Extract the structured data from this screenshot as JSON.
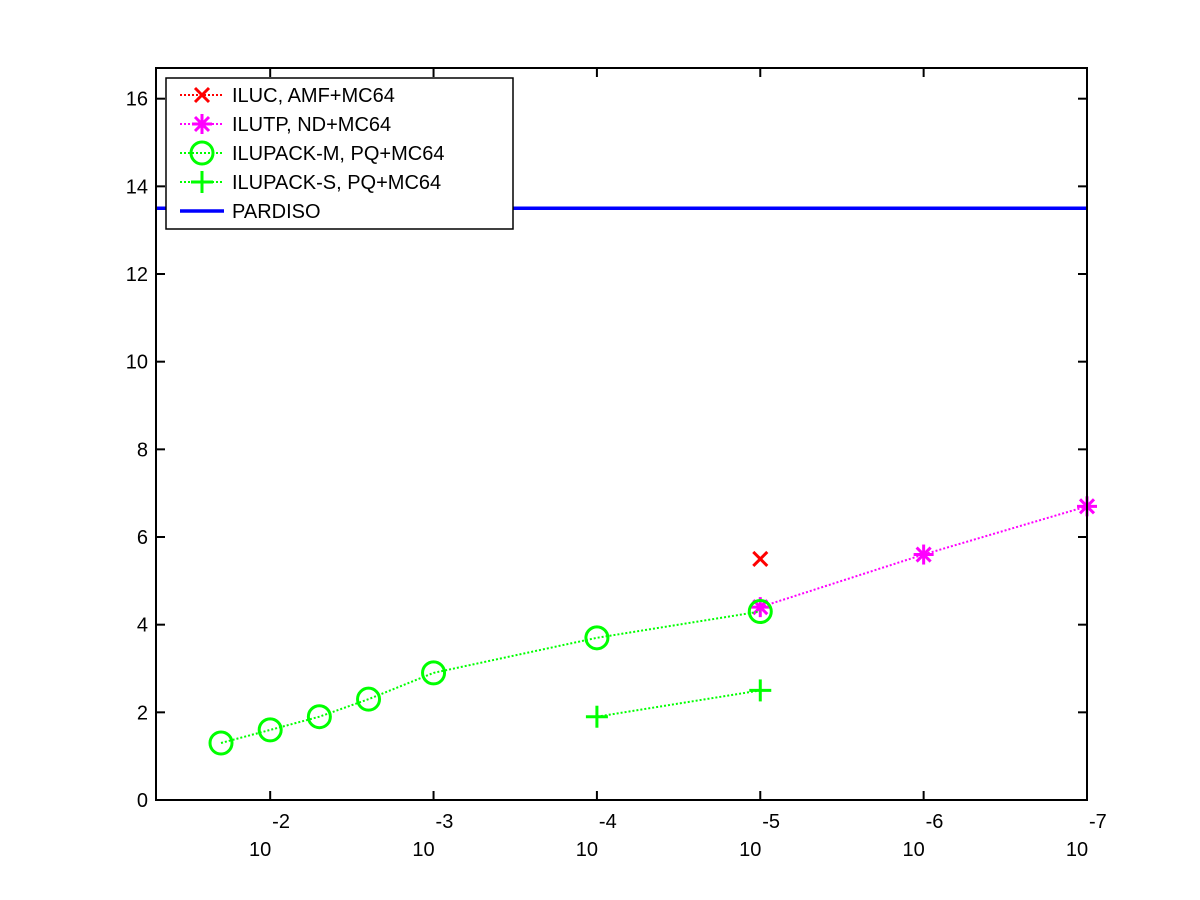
{
  "chart_data": {
    "type": "line",
    "title": "",
    "xlabel": "",
    "ylabel": "",
    "x_scale": "log",
    "x_reversed": true,
    "xlim": [
      0.05,
      1e-07
    ],
    "ylim": [
      0,
      16.7
    ],
    "x_ticks": [
      {
        "value": 0.01,
        "base": "10",
        "exp": "-2"
      },
      {
        "value": 0.001,
        "base": "10",
        "exp": "-3"
      },
      {
        "value": 0.0001,
        "base": "10",
        "exp": "-4"
      },
      {
        "value": 1e-05,
        "base": "10",
        "exp": "-5"
      },
      {
        "value": 1e-06,
        "base": "10",
        "exp": "-6"
      },
      {
        "value": 1e-07,
        "base": "10",
        "exp": "-7"
      }
    ],
    "y_ticks": [
      {
        "value": 0,
        "label": "0"
      },
      {
        "value": 2,
        "label": "2"
      },
      {
        "value": 4,
        "label": "4"
      },
      {
        "value": 6,
        "label": "6"
      },
      {
        "value": 8,
        "label": "8"
      },
      {
        "value": 10,
        "label": "10"
      },
      {
        "value": 12,
        "label": "12"
      },
      {
        "value": 14,
        "label": "14"
      },
      {
        "value": 16,
        "label": "16"
      }
    ],
    "grid": false,
    "legend_position": "top-left",
    "series": [
      {
        "name": "ILUC, AMF+MC64",
        "marker": "x",
        "line": "dotted",
        "color": "#ff0000",
        "points": [
          [
            1e-05,
            5.5
          ]
        ]
      },
      {
        "name": "ILUTP,  ND+MC64",
        "marker": "asterisk",
        "line": "dotted",
        "color": "#ff00ff",
        "points": [
          [
            1e-05,
            4.4
          ],
          [
            1e-06,
            5.6
          ],
          [
            1e-07,
            6.7
          ]
        ]
      },
      {
        "name": "ILUPACK-M, PQ+MC64",
        "marker": "circle",
        "line": "dotted",
        "color": "#00ff00",
        "points": [
          [
            0.02,
            1.3
          ],
          [
            0.01,
            1.6
          ],
          [
            0.005,
            1.9
          ],
          [
            0.0025,
            2.3
          ],
          [
            0.001,
            2.9
          ],
          [
            0.0001,
            3.7
          ],
          [
            1e-05,
            4.3
          ]
        ]
      },
      {
        "name": "ILUPACK-S, PQ+MC64",
        "marker": "plus",
        "line": "dotted",
        "color": "#00ff00",
        "points": [
          [
            0.0001,
            1.9
          ],
          [
            1e-05,
            2.5
          ]
        ]
      },
      {
        "name": "PARDISO",
        "marker": "none",
        "line": "solid",
        "color": "#0000ff",
        "points": [
          [
            0.05,
            13.5
          ],
          [
            1e-07,
            13.5
          ]
        ]
      }
    ]
  }
}
